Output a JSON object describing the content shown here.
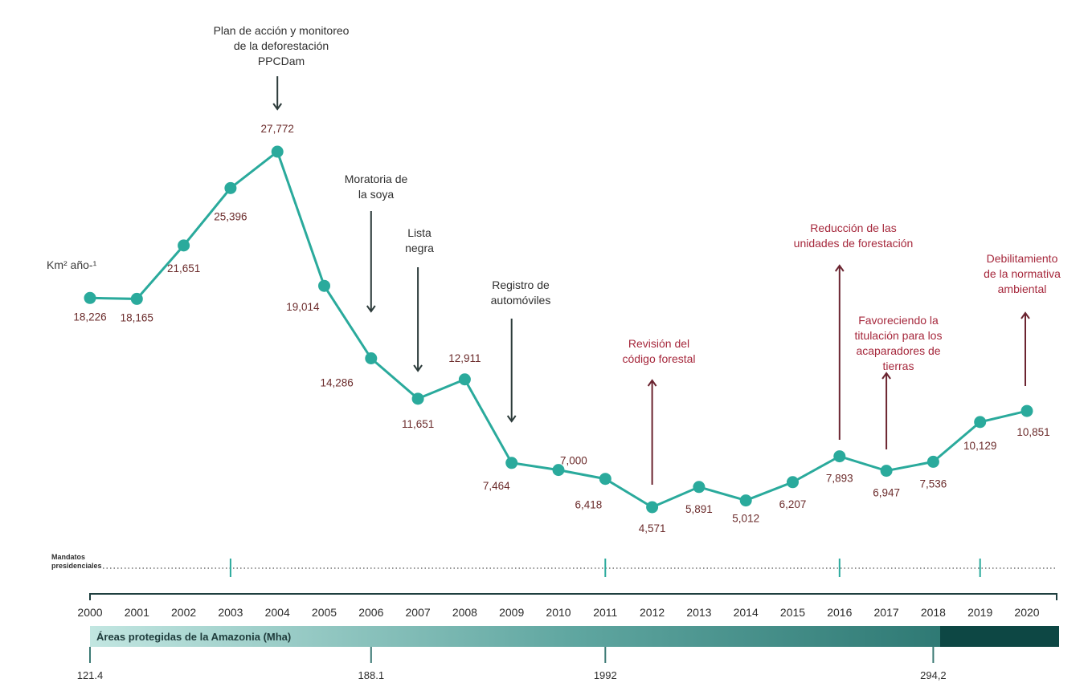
{
  "chart_data": {
    "type": "line",
    "ylabel": "Km² año-¹",
    "x": [
      "2000",
      "2001",
      "2002",
      "2003",
      "2004",
      "2005",
      "2006",
      "2007",
      "2008",
      "2009",
      "2010",
      "2011",
      "2012",
      "2013",
      "2014",
      "2015",
      "2016",
      "2017",
      "2018",
      "2019",
      "2020"
    ],
    "values": [
      18226,
      18165,
      21651,
      25396,
      27772,
      19014,
      14286,
      11651,
      12911,
      7464,
      7000,
      6418,
      4571,
      5891,
      5012,
      6207,
      7893,
      6947,
      7536,
      10129,
      10851
    ],
    "value_labels": [
      "18,226",
      "18,165",
      "21,651",
      "25,396",
      "27,772",
      "19,014",
      "14,286",
      "11,651",
      "12,911",
      "7,464",
      "7,000",
      "6,418",
      "4,571",
      "5,891",
      "5,012",
      "6,207",
      "7,893",
      "6,947",
      "7,536",
      "10,129",
      "10,851"
    ],
    "line_color": "#2aaa9c",
    "annotations": [
      {
        "lines": [
          "Plan de acción y monitoreo",
          "de la deforestación",
          "PPCDam"
        ],
        "year": "2004",
        "color": "#2f2f2f",
        "arrow": "down"
      },
      {
        "lines": [
          "Moratoria de",
          "la soya"
        ],
        "year": "2006",
        "color": "#2f2f2f",
        "arrow": "down"
      },
      {
        "lines": [
          "Lista",
          "negra"
        ],
        "year": "2007",
        "color": "#2f2f2f",
        "arrow": "down"
      },
      {
        "lines": [
          "Registro de",
          "automóviles"
        ],
        "year": "2009",
        "color": "#2f2f2f",
        "arrow": "down"
      },
      {
        "lines": [
          "Revisión del",
          "código forestal"
        ],
        "year": "2012",
        "color": "#a6283c",
        "arrow": "up"
      },
      {
        "lines": [
          "Reducción de las",
          "unidades de forestación"
        ],
        "year": "2016",
        "color": "#a6283c",
        "arrow": "up"
      },
      {
        "lines": [
          "Favoreciendo la",
          "titulación para los",
          "acaparadores de",
          "tierras"
        ],
        "year": "2017",
        "color": "#a6283c",
        "arrow": "up"
      },
      {
        "lines": [
          "Debilitamiento",
          "de la normativa",
          "ambiental"
        ],
        "year": "2020",
        "color": "#a6283c",
        "arrow": "up"
      }
    ],
    "mandates": {
      "label_lines": [
        "Mandatos",
        "presidenciales"
      ],
      "ticks": [
        "2003",
        "2011",
        "2016",
        "2019"
      ]
    },
    "protected_areas": {
      "title": "Áreas protegidas de la Amazonia (Mha)",
      "markers": [
        {
          "year": "2000",
          "label": "121.4"
        },
        {
          "year": "2006",
          "label": "188.1"
        },
        {
          "year": "2011",
          "label": "1992"
        },
        {
          "year": "2018",
          "label": "294,2"
        }
      ]
    }
  }
}
